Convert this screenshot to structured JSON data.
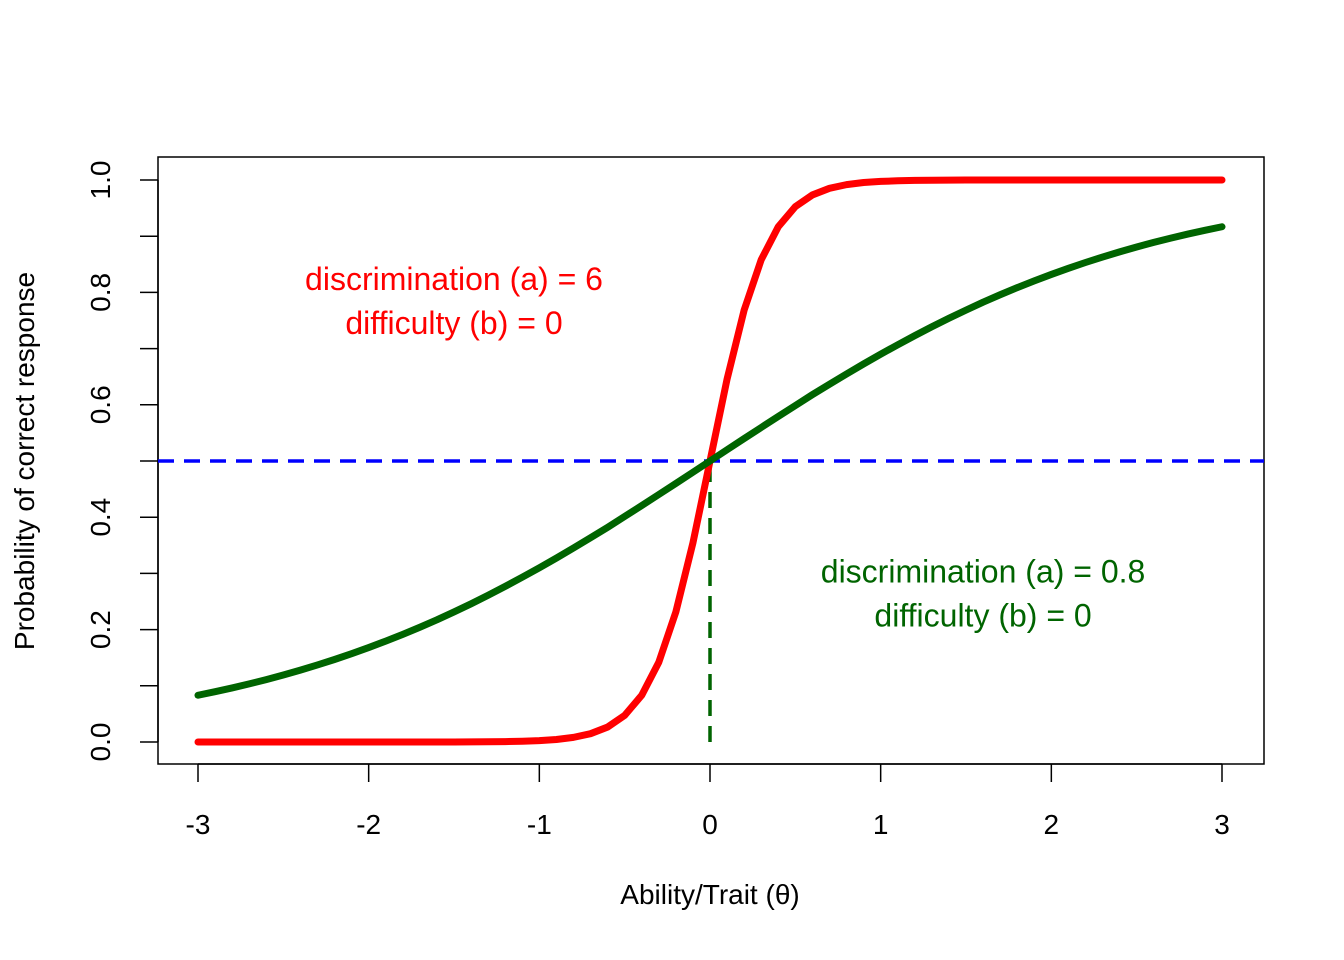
{
  "chart_data": {
    "type": "line",
    "title": "",
    "xlabel": "Ability/Trait (θ)",
    "ylabel": "Probability of correct response",
    "xlim": [
      -3,
      3
    ],
    "ylim": [
      0,
      1
    ],
    "x_ticks": [
      "-3",
      "-2",
      "-1",
      "0",
      "1",
      "2",
      "3"
    ],
    "y_ticks": [
      "0.0",
      "0.2",
      "0.4",
      "0.6",
      "0.8",
      "1.0"
    ],
    "grid": false,
    "legend": "none",
    "series": [
      {
        "color": "#ff0000",
        "x": [
          -3.0,
          -2.9,
          -2.8,
          -2.7,
          -2.6,
          -2.5,
          -2.4,
          -2.3,
          -2.2,
          -2.1,
          -2.0,
          -1.9,
          -1.8,
          -1.7,
          -1.6,
          -1.5,
          -1.4,
          -1.3,
          -1.2,
          -1.1,
          -1.0,
          -0.9,
          -0.8,
          -0.7,
          -0.6,
          -0.5,
          -0.4,
          -0.3,
          -0.2,
          -0.1,
          0.0,
          0.1,
          0.2,
          0.3,
          0.4,
          0.5,
          0.6,
          0.7,
          0.8,
          0.9,
          1.0,
          1.1,
          1.2,
          1.3,
          1.4,
          1.5,
          1.6,
          1.7,
          1.8,
          1.9,
          2.0,
          2.1,
          2.2,
          2.3,
          2.4,
          2.5,
          2.6,
          2.7,
          2.8,
          2.9,
          3.0
        ],
        "y": [
          0.0,
          0.0,
          0.0,
          0.0,
          0.0,
          0.0,
          0.0,
          0.0,
          0.0,
          0.0,
          0.0,
          0.0,
          0.0,
          0.0,
          0.0001,
          0.0001,
          0.0002,
          0.0004,
          0.0007,
          0.0014,
          0.0025,
          0.0045,
          0.0082,
          0.0148,
          0.0266,
          0.0474,
          0.0832,
          0.1419,
          0.2315,
          0.3543,
          0.5,
          0.6457,
          0.7685,
          0.8581,
          0.9168,
          0.9526,
          0.9734,
          0.9852,
          0.9918,
          0.9955,
          0.9975,
          0.9986,
          0.9993,
          0.9996,
          0.9998,
          0.9999,
          0.9999,
          1.0,
          1.0,
          1.0,
          1.0,
          1.0,
          1.0,
          1.0,
          1.0,
          1.0,
          1.0,
          1.0,
          1.0,
          1.0,
          1.0
        ]
      },
      {
        "color": "#006400",
        "x": [
          -3.0,
          -2.9,
          -2.8,
          -2.7,
          -2.6,
          -2.5,
          -2.4,
          -2.3,
          -2.2,
          -2.1,
          -2.0,
          -1.9,
          -1.8,
          -1.7,
          -1.6,
          -1.5,
          -1.4,
          -1.3,
          -1.2,
          -1.1,
          -1.0,
          -0.9,
          -0.8,
          -0.7,
          -0.6,
          -0.5,
          -0.4,
          -0.3,
          -0.2,
          -0.1,
          0.0,
          0.1,
          0.2,
          0.3,
          0.4,
          0.5,
          0.6,
          0.7,
          0.8,
          0.9,
          1.0,
          1.1,
          1.2,
          1.3,
          1.4,
          1.5,
          1.6,
          1.7,
          1.8,
          1.9,
          2.0,
          2.1,
          2.2,
          2.3,
          2.4,
          2.5,
          2.6,
          2.7,
          2.8,
          2.9,
          3.0
        ],
        "y": [
          0.0832,
          0.0895,
          0.0962,
          0.1034,
          0.111,
          0.1192,
          0.1279,
          0.1371,
          0.1468,
          0.1572,
          0.168,
          0.1795,
          0.1915,
          0.2042,
          0.2174,
          0.2315,
          0.2459,
          0.2611,
          0.2769,
          0.2932,
          0.31,
          0.3273,
          0.3452,
          0.3634,
          0.3819,
          0.4013,
          0.4207,
          0.4404,
          0.4601,
          0.48,
          0.5,
          0.52,
          0.5399,
          0.5596,
          0.5793,
          0.5987,
          0.6181,
          0.6366,
          0.6548,
          0.6727,
          0.69,
          0.7068,
          0.7231,
          0.7389,
          0.7541,
          0.7685,
          0.7826,
          0.7958,
          0.8085,
          0.8205,
          0.832,
          0.8428,
          0.8532,
          0.8629,
          0.8721,
          0.8808,
          0.889,
          0.8966,
          0.9038,
          0.9105,
          0.9168
        ]
      }
    ],
    "reference_lines": [
      {
        "orientation": "horizontal",
        "y": 0.5,
        "color": "#0000ff",
        "style": "dashed"
      },
      {
        "orientation": "vertical",
        "x": 0,
        "y_from": 0,
        "y_to": 0.5,
        "color": "#006400",
        "style": "dashed"
      }
    ],
    "annotations": [
      {
        "lines": [
          "discrimination (a) = 6",
          "difficulty (b) = 0"
        ],
        "x": -1.5,
        "y": 0.765,
        "color": "#ff0000"
      },
      {
        "lines": [
          "discrimination (a) = 0.8",
          "difficulty (b) = 0"
        ],
        "x": 1.6,
        "y": 0.245,
        "color": "#006400"
      }
    ]
  }
}
